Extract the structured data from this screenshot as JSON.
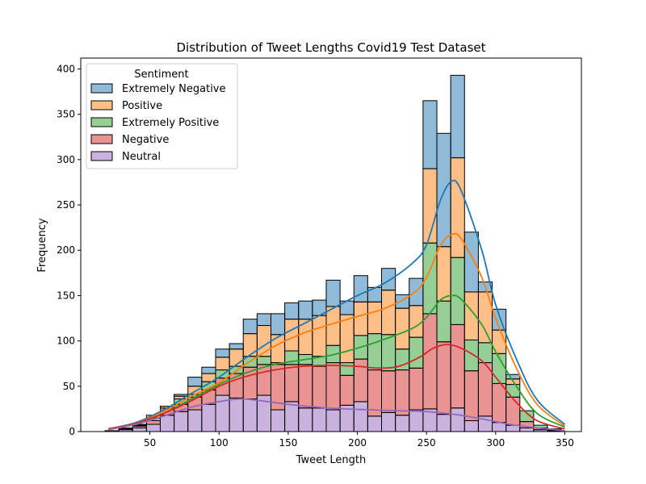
{
  "chart_data": {
    "type": "bar",
    "subtype": "stacked-histogram-with-kde",
    "title": "Distribution of Tweet Lengths Covid19 Test Dataset",
    "xlabel": "Tweet Length",
    "ylabel": "Frequency",
    "xlim": [
      0,
      362
    ],
    "ylim": [
      0,
      412
    ],
    "xticks": [
      50,
      100,
      150,
      200,
      250,
      300,
      350
    ],
    "yticks": [
      0,
      50,
      100,
      150,
      200,
      250,
      300,
      350,
      400
    ],
    "grid": false,
    "legend": {
      "title": "Sentiment",
      "placement": "top-left",
      "entries": [
        "Extremely Negative",
        "Positive",
        "Extremely Positive",
        "Negative",
        "Neutral"
      ]
    },
    "bins": {
      "starts": [
        17.5,
        27.5,
        37.5,
        47.5,
        57.5,
        67.5,
        77.5,
        87.5,
        97.5,
        107.5,
        117.5,
        127.5,
        137.5,
        147.5,
        157.5,
        167.5,
        177.5,
        187.5,
        197.5,
        207.5,
        217.5,
        227.5,
        237.5,
        247.5,
        257.5,
        267.5,
        277.5,
        287.5,
        297.5,
        307.5,
        317.5,
        327.5,
        337.5
      ],
      "width": 10
    },
    "series": [
      {
        "name": "Neutral",
        "color": "#9467bd",
        "values": [
          1,
          2,
          4,
          8,
          18,
          22,
          24,
          30,
          40,
          37,
          36,
          40,
          24,
          33,
          26,
          26,
          24,
          29,
          33,
          17,
          21,
          18,
          24,
          25,
          19,
          26,
          12,
          17,
          10,
          7,
          4,
          2,
          1
        ]
      },
      {
        "name": "Negative",
        "color": "#d62728",
        "values": [
          0,
          1,
          2,
          4,
          8,
          8,
          14,
          16,
          19,
          27,
          35,
          34,
          50,
          41,
          48,
          46,
          52,
          33,
          47,
          51,
          46,
          50,
          46,
          105,
          80,
          92,
          55,
          59,
          43,
          31,
          7,
          2,
          1
        ]
      },
      {
        "name": "Extremely Positive",
        "color": "#2ca02c",
        "values": [
          0,
          0,
          1,
          3,
          0,
          6,
          3,
          9,
          9,
          8,
          12,
          9,
          2,
          15,
          11,
          11,
          19,
          14,
          26,
          40,
          40,
          23,
          34,
          78,
          45,
          74,
          34,
          22,
          33,
          14,
          12,
          3,
          1
        ]
      },
      {
        "name": "Positive",
        "color": "#ff7f0e",
        "values": [
          0,
          1,
          1,
          3,
          2,
          3,
          9,
          9,
          14,
          19,
          25,
          34,
          31,
          35,
          39,
          45,
          43,
          53,
          37,
          35,
          49,
          45,
          35,
          82,
          60,
          110,
          53,
          56,
          26,
          6,
          0,
          0,
          0
        ]
      },
      {
        "name": "Extremely Negative",
        "color": "#1f77b4",
        "values": [
          0,
          0,
          0,
          0,
          0,
          2,
          10,
          7,
          9,
          6,
          16,
          13,
          23,
          18,
          20,
          17,
          29,
          15,
          29,
          16,
          24,
          15,
          30,
          75,
          125,
          91,
          66,
          11,
          23,
          5,
          0,
          0,
          0
        ]
      }
    ],
    "kde_curves": [
      {
        "name": "Extremely Negative",
        "color": "#1f77b4",
        "points": [
          [
            20,
            3
          ],
          [
            40,
            10
          ],
          [
            60,
            24
          ],
          [
            80,
            42
          ],
          [
            100,
            60
          ],
          [
            120,
            82
          ],
          [
            140,
            102
          ],
          [
            160,
            118
          ],
          [
            180,
            134
          ],
          [
            200,
            150
          ],
          [
            220,
            164
          ],
          [
            240,
            186
          ],
          [
            250,
            206
          ],
          [
            260,
            255
          ],
          [
            268,
            276
          ],
          [
            275,
            266
          ],
          [
            290,
            200
          ],
          [
            300,
            140
          ],
          [
            315,
            80
          ],
          [
            330,
            35
          ],
          [
            350,
            8
          ]
        ]
      },
      {
        "name": "Positive",
        "color": "#ff7f0e",
        "points": [
          [
            20,
            3
          ],
          [
            40,
            9
          ],
          [
            60,
            22
          ],
          [
            80,
            39
          ],
          [
            100,
            54
          ],
          [
            120,
            75
          ],
          [
            140,
            94
          ],
          [
            160,
            108
          ],
          [
            180,
            118
          ],
          [
            200,
            127
          ],
          [
            220,
            136
          ],
          [
            240,
            152
          ],
          [
            250,
            170
          ],
          [
            260,
            205
          ],
          [
            268,
            217
          ],
          [
            275,
            213
          ],
          [
            290,
            170
          ],
          [
            300,
            125
          ],
          [
            315,
            70
          ],
          [
            330,
            30
          ],
          [
            350,
            6
          ]
        ]
      },
      {
        "name": "Extremely Positive",
        "color": "#2ca02c",
        "points": [
          [
            20,
            3
          ],
          [
            40,
            9
          ],
          [
            60,
            20
          ],
          [
            80,
            36
          ],
          [
            100,
            52
          ],
          [
            120,
            65
          ],
          [
            140,
            74
          ],
          [
            160,
            79
          ],
          [
            180,
            84
          ],
          [
            200,
            92
          ],
          [
            220,
            102
          ],
          [
            240,
            114
          ],
          [
            250,
            126
          ],
          [
            260,
            145
          ],
          [
            268,
            150
          ],
          [
            275,
            146
          ],
          [
            290,
            118
          ],
          [
            300,
            88
          ],
          [
            315,
            50
          ],
          [
            330,
            20
          ],
          [
            350,
            5
          ]
        ]
      },
      {
        "name": "Negative",
        "color": "#d62728",
        "points": [
          [
            20,
            3
          ],
          [
            40,
            9
          ],
          [
            60,
            20
          ],
          [
            80,
            34
          ],
          [
            100,
            50
          ],
          [
            120,
            61
          ],
          [
            140,
            68
          ],
          [
            160,
            72
          ],
          [
            180,
            73
          ],
          [
            200,
            72
          ],
          [
            215,
            70
          ],
          [
            230,
            72
          ],
          [
            245,
            82
          ],
          [
            255,
            92
          ],
          [
            265,
            96
          ],
          [
            275,
            92
          ],
          [
            290,
            78
          ],
          [
            300,
            60
          ],
          [
            315,
            32
          ],
          [
            330,
            12
          ],
          [
            350,
            3
          ]
        ]
      },
      {
        "name": "Neutral",
        "color": "#9467bd",
        "points": [
          [
            20,
            2
          ],
          [
            40,
            8
          ],
          [
            60,
            17
          ],
          [
            80,
            27
          ],
          [
            100,
            33
          ],
          [
            115,
            36
          ],
          [
            130,
            34
          ],
          [
            150,
            30
          ],
          [
            170,
            27
          ],
          [
            190,
            25
          ],
          [
            210,
            24
          ],
          [
            230,
            23
          ],
          [
            250,
            22
          ],
          [
            270,
            19
          ],
          [
            290,
            14
          ],
          [
            310,
            8
          ],
          [
            330,
            4
          ],
          [
            350,
            1
          ]
        ]
      }
    ]
  }
}
